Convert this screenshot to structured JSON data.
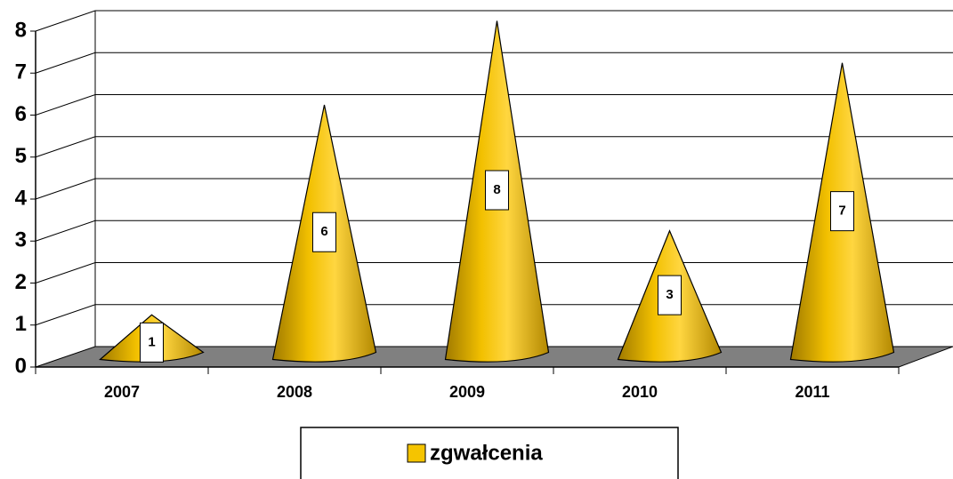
{
  "chart_data": {
    "type": "cone",
    "categories": [
      "2007",
      "2008",
      "2009",
      "2010",
      "2011"
    ],
    "series": [
      {
        "name": "zgwałcenia",
        "color": "#f5c400",
        "values": [
          1,
          6,
          8,
          3,
          7
        ]
      }
    ],
    "ylim": [
      0,
      8
    ],
    "yticks": [
      0,
      1,
      2,
      3,
      4,
      5,
      6,
      7,
      8
    ],
    "grid": true,
    "legend": "bottom"
  }
}
